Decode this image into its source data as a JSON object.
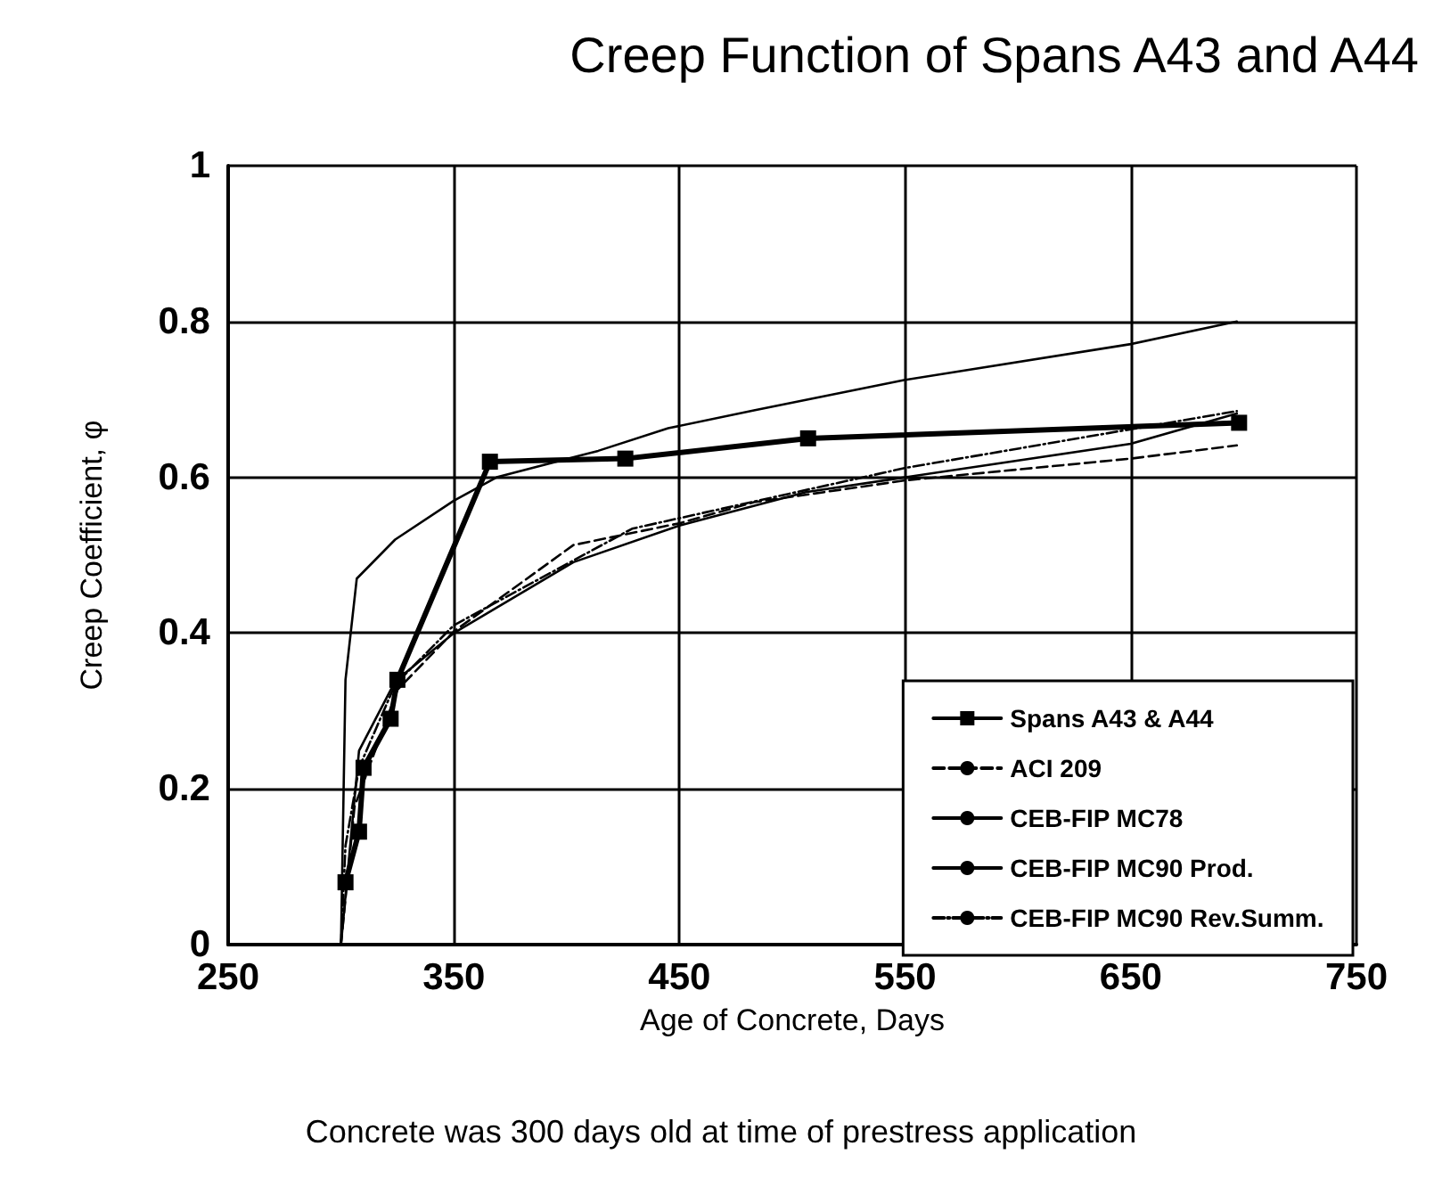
{
  "chart_data": {
    "type": "line",
    "title": "Creep Function of Spans A43 and A44",
    "xlabel": "Age of Concrete, Days",
    "ylabel": "Creep Coefficient, φ",
    "annotations": [
      "Concrete was 300 days old at time of prestress application"
    ],
    "xlim": [
      250,
      750
    ],
    "xticks": [
      250,
      350,
      450,
      550,
      650,
      750
    ],
    "ylim": [
      0,
      1
    ],
    "yticks": [
      0,
      0.2,
      0.4,
      0.6,
      0.8,
      1
    ],
    "grid": true,
    "legend": "bottom right",
    "series": [
      {
        "name": "Spans A43 & A44",
        "color": "#000000",
        "marker": "square",
        "line_style": "solid",
        "x": [
          302,
          308,
          310,
          322,
          325,
          366,
          426,
          507,
          698
        ],
        "values": [
          0.08,
          0.145,
          0.227,
          0.29,
          0.34,
          0.62,
          0.624,
          0.65,
          0.67
        ]
      },
      {
        "name": "ACI 209",
        "color": "#000000",
        "marker": "none",
        "line_style": "dashed",
        "x": [
          300,
          306,
          325,
          350,
          403,
          450,
          483,
          550,
          650,
          697
        ],
        "values": [
          0,
          0.177,
          0.327,
          0.402,
          0.513,
          0.541,
          0.568,
          0.596,
          0.624,
          0.641
        ]
      },
      {
        "name": "CEB-FIP MC78",
        "color": "#000000",
        "marker": "none",
        "line_style": "solid",
        "x": [
          300,
          302,
          307,
          324,
          350,
          369,
          414,
          445,
          483,
          550,
          650,
          697
        ],
        "values": [
          0,
          0.34,
          0.47,
          0.52,
          0.57,
          0.6,
          0.634,
          0.663,
          0.686,
          0.725,
          0.771,
          0.8
        ]
      },
      {
        "name": "CEB-FIP MC90 Prod.",
        "color": "#000000",
        "marker": "none",
        "line_style": "solid",
        "x": [
          300,
          308,
          324,
          350,
          403,
          450,
          506,
          550,
          650,
          697
        ],
        "values": [
          0,
          0.249,
          0.338,
          0.4,
          0.491,
          0.538,
          0.581,
          0.6,
          0.643,
          0.682
        ]
      },
      {
        "name": "CEB-FIP MC90 Rev.Summ.",
        "color": "#000000",
        "marker": "none",
        "line_style": "dotted",
        "x": [
          300,
          302,
          308,
          324,
          350,
          429,
          550,
          697
        ],
        "values": [
          0,
          0.127,
          0.227,
          0.334,
          0.41,
          0.534,
          0.612,
          0.685
        ]
      }
    ]
  }
}
